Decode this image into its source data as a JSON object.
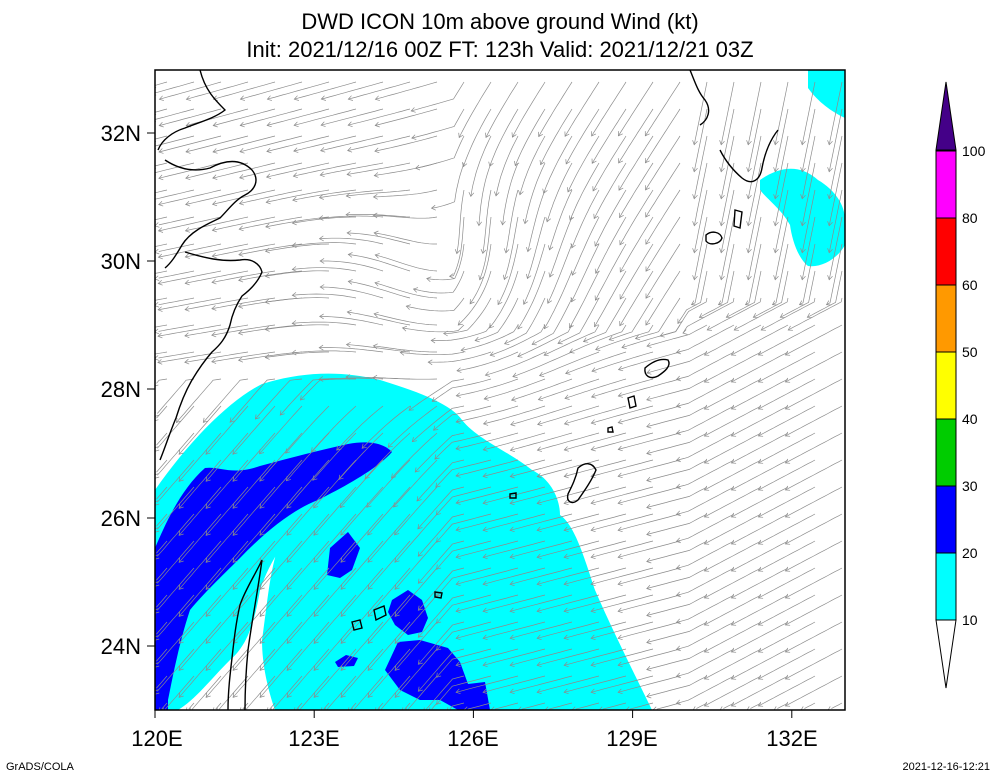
{
  "title": {
    "line1": "DWD ICON 10m above ground Wind (kt)",
    "line2": "Init: 2021/12/16 00Z  FT: 123h  Valid: 2021/12/21 03Z"
  },
  "axes": {
    "lon_labels": [
      "120E",
      "123E",
      "126E",
      "129E",
      "132E"
    ],
    "lat_labels": [
      "32N",
      "30N",
      "28N",
      "26N",
      "24N"
    ]
  },
  "colorbar": {
    "levels": [
      "10",
      "20",
      "30",
      "40",
      "50",
      "60",
      "80",
      "100"
    ],
    "colors": [
      "#00ffff",
      "#0000ff",
      "#00cc00",
      "#ffff00",
      "#ff9900",
      "#ff0000",
      "#ff00ff",
      "#440088"
    ]
  },
  "map_colors": {
    "wind_10_20": "#00ffff",
    "wind_20_30": "#0000ff",
    "streamline": "#8c8c8c",
    "coast": "#000000"
  },
  "footer": {
    "credit": "GrADS/COLA",
    "timestamp": "2021-12-16-12:21"
  }
}
